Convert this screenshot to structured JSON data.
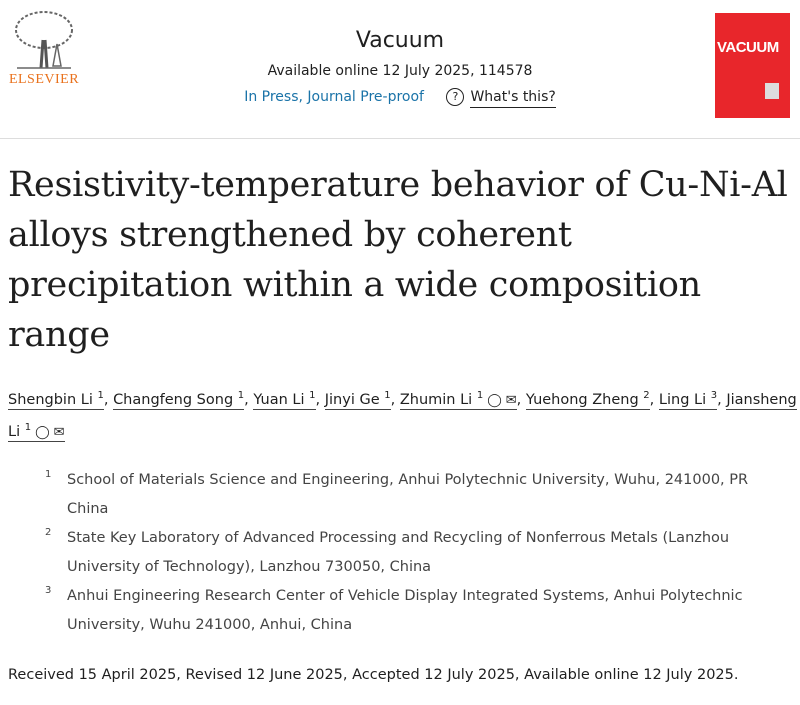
{
  "publisher": {
    "name": "ELSEVIER",
    "color": "#e9711c"
  },
  "journal": {
    "title": "Vacuum",
    "cover_title": "VACUUM",
    "cover_color": "#e8262b"
  },
  "availability": "Available online 12 July 2025, 114578",
  "status": {
    "label": "In Press, Journal Pre-proof",
    "help_icon": "question-circle-icon",
    "help_label": "What's this?"
  },
  "article_title": "Resistivity-temperature behavior of Cu-Ni-Al alloys strengthened by coherent precipitation within a wide composition range",
  "authors": [
    {
      "name": "Shengbin Li",
      "aff": "1",
      "corresponding": false
    },
    {
      "name": "Changfeng Song",
      "aff": "1",
      "corresponding": false
    },
    {
      "name": "Yuan Li",
      "aff": "1",
      "corresponding": false
    },
    {
      "name": "Jinyi Ge",
      "aff": "1",
      "corresponding": false
    },
    {
      "name": "Zhumin Li",
      "aff": "1",
      "corresponding": true
    },
    {
      "name": "Yuehong Zheng",
      "aff": "2",
      "corresponding": false
    },
    {
      "name": "Ling Li",
      "aff": "3",
      "corresponding": false
    },
    {
      "name": "Jiansheng Li",
      "aff": "1",
      "corresponding": true
    }
  ],
  "affiliations": [
    {
      "n": "1",
      "text": "School of Materials Science and Engineering, Anhui Polytechnic University, Wuhu, 241000, PR China"
    },
    {
      "n": "2",
      "text": "State Key Laboratory of Advanced Processing and Recycling of Nonferrous Metals (Lanzhou University of Technology), Lanzhou 730050, China"
    },
    {
      "n": "3",
      "text": "Anhui Engineering Research Center of Vehicle Display Integrated Systems, Anhui Polytechnic University, Wuhu 241000, Anhui, China"
    }
  ],
  "dates": "Received 15 April 2025, Revised 12 June 2025, Accepted 12 July 2025, Available online 12 July 2025."
}
